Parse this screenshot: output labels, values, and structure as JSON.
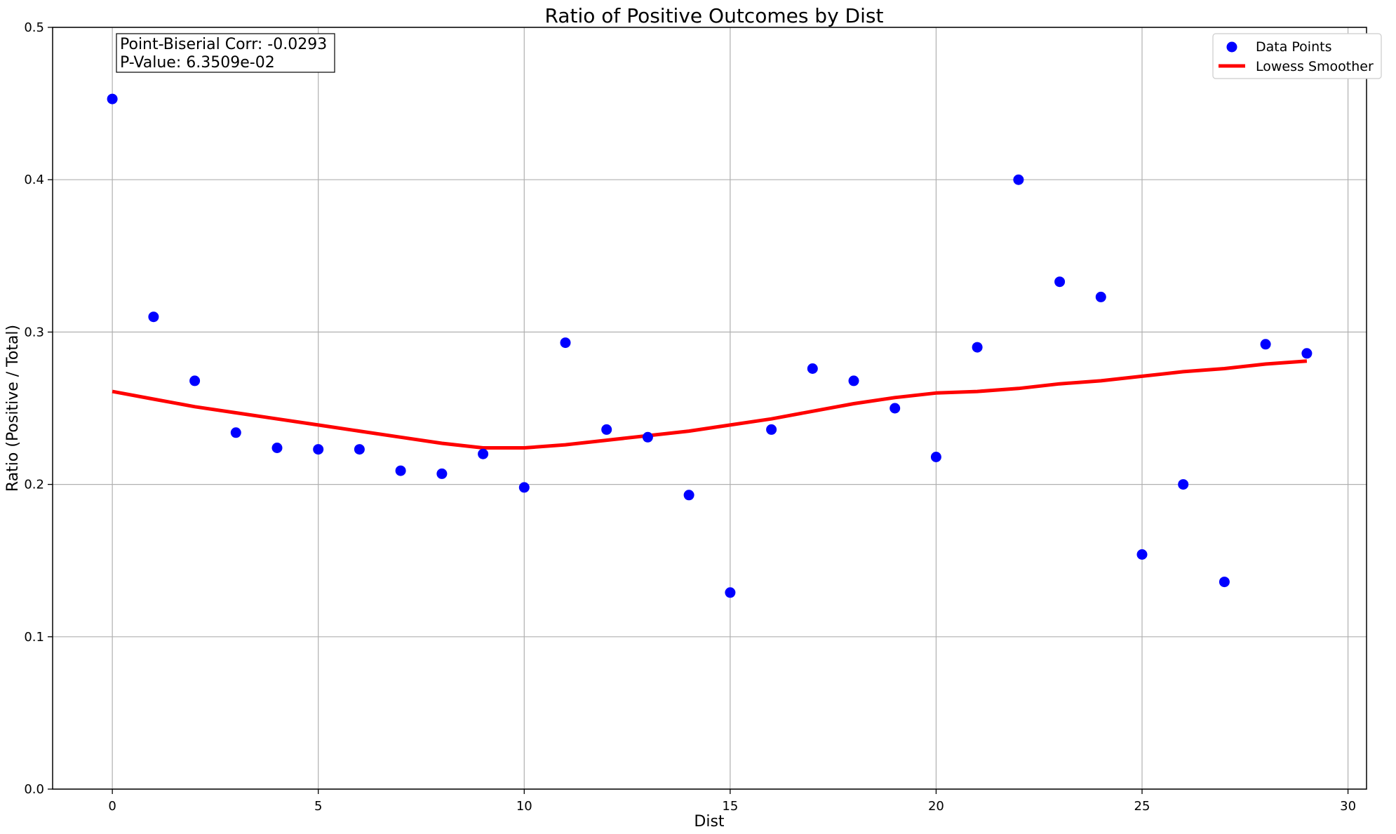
{
  "chart_data": {
    "type": "scatter",
    "title": "Ratio of Positive Outcomes by Dist",
    "xlabel": "Dist",
    "ylabel": "Ratio (Positive / Total)",
    "xlim": [
      -1.45,
      30.45
    ],
    "ylim": [
      0,
      0.5
    ],
    "xticks": [
      0,
      5,
      10,
      15,
      20,
      25,
      30
    ],
    "yticks": [
      0.0,
      0.1,
      0.2,
      0.3,
      0.4,
      0.5
    ],
    "xtick_labels": [
      "0",
      "5",
      "10",
      "15",
      "20",
      "25",
      "30"
    ],
    "ytick_labels": [
      "0.0",
      "0.1",
      "0.2",
      "0.3",
      "0.4",
      "0.5"
    ],
    "grid": true,
    "legend_position": "top-right",
    "annotation": {
      "line1": "Point-Biserial Corr: -0.0293",
      "line2": "P-Value: 6.3509e-02"
    },
    "series": [
      {
        "name": "Data Points",
        "type": "scatter",
        "color": "#0000ff",
        "x": [
          0,
          1,
          2,
          3,
          4,
          5,
          6,
          7,
          8,
          9,
          10,
          11,
          12,
          13,
          14,
          15,
          16,
          17,
          18,
          19,
          20,
          21,
          22,
          23,
          24,
          25,
          26,
          27,
          28,
          29
        ],
        "y": [
          0.453,
          0.31,
          0.268,
          0.234,
          0.224,
          0.223,
          0.223,
          0.209,
          0.207,
          0.22,
          0.198,
          0.293,
          0.236,
          0.231,
          0.193,
          0.129,
          0.236,
          0.276,
          0.268,
          0.25,
          0.218,
          0.29,
          0.4,
          0.333,
          0.323,
          0.154,
          0.2,
          0.136,
          0.292,
          0.286
        ]
      },
      {
        "name": "Lowess Smoother",
        "type": "line",
        "color": "#ff0000",
        "x": [
          0,
          1,
          2,
          3,
          4,
          5,
          6,
          7,
          8,
          9,
          10,
          11,
          12,
          13,
          14,
          15,
          16,
          17,
          18,
          19,
          20,
          21,
          22,
          23,
          24,
          25,
          26,
          27,
          28,
          29
        ],
        "y": [
          0.261,
          0.256,
          0.251,
          0.247,
          0.243,
          0.239,
          0.235,
          0.231,
          0.227,
          0.224,
          0.224,
          0.226,
          0.229,
          0.232,
          0.235,
          0.239,
          0.243,
          0.248,
          0.253,
          0.257,
          0.26,
          0.261,
          0.263,
          0.266,
          0.268,
          0.271,
          0.274,
          0.276,
          0.279,
          0.281
        ]
      }
    ]
  }
}
